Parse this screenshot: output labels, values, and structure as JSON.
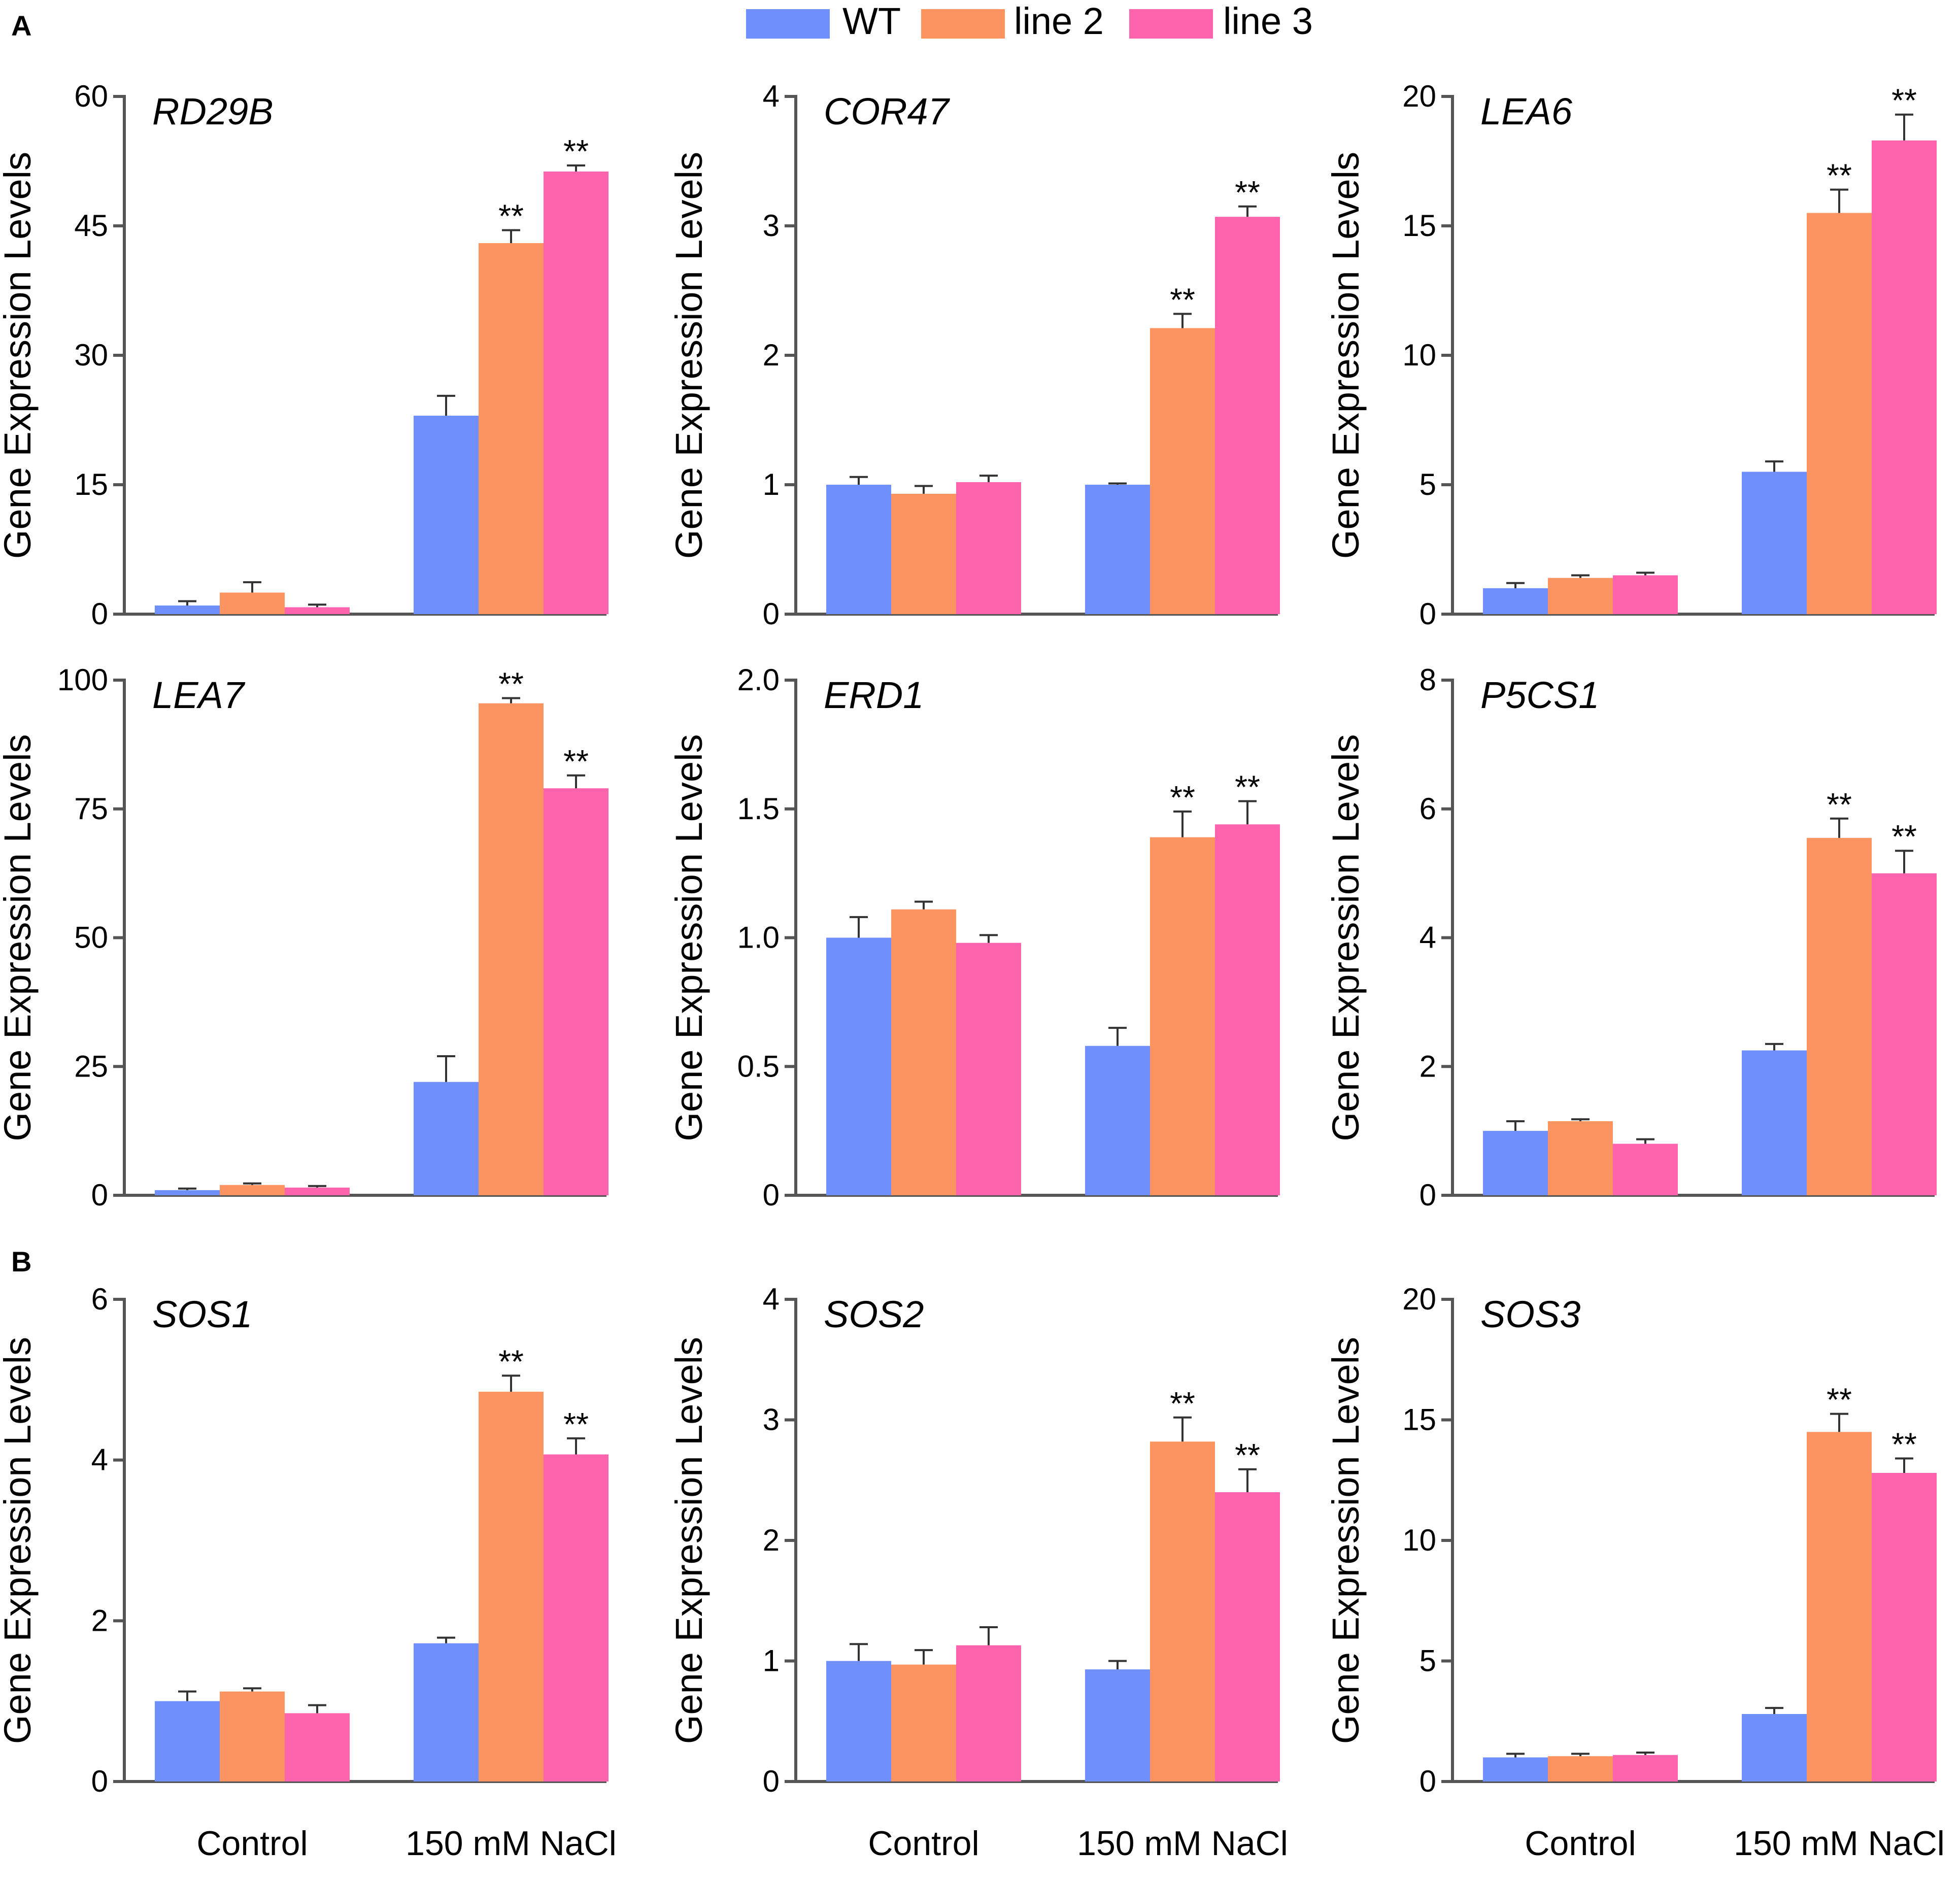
{
  "legend": [
    {
      "label": "WT",
      "color": "#6f8ffc"
    },
    {
      "label": "line 2",
      "color": "#fb9460"
    },
    {
      "label": "line 3",
      "color": "#fd64ad"
    }
  ],
  "panel_labels": [
    "A",
    "B"
  ],
  "chart_data": [
    {
      "type": "bar",
      "title": "RD29B",
      "ylabel": "Gene Expression Levels",
      "xlabel": "",
      "categories": [
        "Control",
        "150 mM NaCl"
      ],
      "ylim": [
        0,
        60
      ],
      "yticks": [
        "0",
        "15",
        "30",
        "45",
        "60"
      ],
      "show_xticks": false,
      "series": [
        {
          "name": "WT",
          "values": [
            1.0,
            23.0
          ],
          "errors": [
            0.5,
            2.3
          ],
          "sig": [
            "",
            ""
          ]
        },
        {
          "name": "line 2",
          "values": [
            2.5,
            43.0
          ],
          "errors": [
            1.2,
            1.5
          ],
          "sig": [
            "",
            "**"
          ]
        },
        {
          "name": "line 3",
          "values": [
            0.8,
            51.3
          ],
          "errors": [
            0.3,
            0.7
          ],
          "sig": [
            "",
            "**"
          ]
        }
      ]
    },
    {
      "type": "bar",
      "title": "COR47",
      "ylabel": "Gene Expression Levels",
      "xlabel": "",
      "categories": [
        "Control",
        "150 mM NaCl"
      ],
      "ylim": [
        0,
        4
      ],
      "yticks": [
        "0",
        "1",
        "2",
        "3",
        "4"
      ],
      "show_xticks": false,
      "series": [
        {
          "name": "WT",
          "values": [
            1.0,
            1.0
          ],
          "errors": [
            0.06,
            0.01
          ],
          "sig": [
            "",
            ""
          ]
        },
        {
          "name": "line 2",
          "values": [
            0.93,
            2.21
          ],
          "errors": [
            0.06,
            0.11
          ],
          "sig": [
            "",
            "**"
          ]
        },
        {
          "name": "line 3",
          "values": [
            1.02,
            3.07
          ],
          "errors": [
            0.05,
            0.08
          ],
          "sig": [
            "",
            "**"
          ]
        }
      ]
    },
    {
      "type": "bar",
      "title": "LEA6",
      "ylabel": "Gene Expression Levels",
      "xlabel": "",
      "categories": [
        "Control",
        "150 mM NaCl"
      ],
      "ylim": [
        0,
        20
      ],
      "yticks": [
        "0",
        "5",
        "10",
        "15",
        "20"
      ],
      "show_xticks": false,
      "series": [
        {
          "name": "WT",
          "values": [
            1.0,
            5.5
          ],
          "errors": [
            0.2,
            0.4
          ],
          "sig": [
            "",
            ""
          ]
        },
        {
          "name": "line 2",
          "values": [
            1.4,
            15.5
          ],
          "errors": [
            0.1,
            0.9
          ],
          "sig": [
            "",
            "**"
          ]
        },
        {
          "name": "line 3",
          "values": [
            1.5,
            18.3
          ],
          "errors": [
            0.1,
            1.0
          ],
          "sig": [
            "",
            "**"
          ]
        }
      ]
    },
    {
      "type": "bar",
      "title": "LEA7",
      "ylabel": "Gene Expression Levels",
      "xlabel": "",
      "categories": [
        "Control",
        "150 mM NaCl"
      ],
      "ylim": [
        0,
        100
      ],
      "yticks": [
        "0",
        "25",
        "50",
        "75",
        "100"
      ],
      "show_xticks": false,
      "series": [
        {
          "name": "WT",
          "values": [
            1.0,
            22.0
          ],
          "errors": [
            0.3,
            5.0
          ],
          "sig": [
            "",
            ""
          ]
        },
        {
          "name": "line 2",
          "values": [
            2.0,
            95.5
          ],
          "errors": [
            0.3,
            1.0
          ],
          "sig": [
            "",
            "**"
          ]
        },
        {
          "name": "line 3",
          "values": [
            1.5,
            79.0
          ],
          "errors": [
            0.3,
            2.5
          ],
          "sig": [
            "",
            "**"
          ]
        }
      ]
    },
    {
      "type": "bar",
      "title": "ERD1",
      "ylabel": "Gene Expression Levels",
      "xlabel": "",
      "categories": [
        "Control",
        "150 mM NaCl"
      ],
      "ylim": [
        0,
        2
      ],
      "yticks": [
        "0",
        "0.5",
        "1.0",
        "1.5",
        "2.0"
      ],
      "show_xticks": false,
      "series": [
        {
          "name": "WT",
          "values": [
            1.0,
            0.58
          ],
          "errors": [
            0.08,
            0.07
          ],
          "sig": [
            "",
            ""
          ]
        },
        {
          "name": "line 2",
          "values": [
            1.11,
            1.39
          ],
          "errors": [
            0.03,
            0.1
          ],
          "sig": [
            "",
            "**"
          ]
        },
        {
          "name": "line 3",
          "values": [
            0.98,
            1.44
          ],
          "errors": [
            0.03,
            0.09
          ],
          "sig": [
            "",
            "**"
          ]
        }
      ]
    },
    {
      "type": "bar",
      "title": "P5CS1",
      "ylabel": "Gene Expression Levels",
      "xlabel": "",
      "categories": [
        "Control",
        "150 mM NaCl"
      ],
      "ylim": [
        0,
        8
      ],
      "yticks": [
        "0",
        "2",
        "4",
        "6",
        "8"
      ],
      "show_xticks": false,
      "series": [
        {
          "name": "WT",
          "values": [
            1.0,
            2.25
          ],
          "errors": [
            0.15,
            0.1
          ],
          "sig": [
            "",
            ""
          ]
        },
        {
          "name": "line 2",
          "values": [
            1.15,
            5.55
          ],
          "errors": [
            0.03,
            0.3
          ],
          "sig": [
            "",
            "**"
          ]
        },
        {
          "name": "line 3",
          "values": [
            0.8,
            5.0
          ],
          "errors": [
            0.07,
            0.35
          ],
          "sig": [
            "",
            "**"
          ]
        }
      ]
    },
    {
      "type": "bar",
      "title": "SOS1",
      "ylabel": "Gene Expression Levels",
      "xlabel": "",
      "categories": [
        "Control",
        "150 mM NaCl"
      ],
      "ylim": [
        0,
        6
      ],
      "yticks": [
        "0",
        "2",
        "4",
        "6"
      ],
      "show_xticks": true,
      "series": [
        {
          "name": "WT",
          "values": [
            1.0,
            1.72
          ],
          "errors": [
            0.12,
            0.07
          ],
          "sig": [
            "",
            ""
          ]
        },
        {
          "name": "line 2",
          "values": [
            1.12,
            4.85
          ],
          "errors": [
            0.04,
            0.2
          ],
          "sig": [
            "",
            "**"
          ]
        },
        {
          "name": "line 3",
          "values": [
            0.85,
            4.07
          ],
          "errors": [
            0.1,
            0.2
          ],
          "sig": [
            "",
            "**"
          ]
        }
      ]
    },
    {
      "type": "bar",
      "title": "SOS2",
      "ylabel": "Gene Expression Levels",
      "xlabel": "",
      "categories": [
        "Control",
        "150 mM NaCl"
      ],
      "ylim": [
        0,
        4
      ],
      "yticks": [
        "0",
        "1",
        "2",
        "3",
        "4"
      ],
      "show_xticks": true,
      "series": [
        {
          "name": "WT",
          "values": [
            1.0,
            0.93
          ],
          "errors": [
            0.14,
            0.07
          ],
          "sig": [
            "",
            ""
          ]
        },
        {
          "name": "line 2",
          "values": [
            0.97,
            2.82
          ],
          "errors": [
            0.12,
            0.2
          ],
          "sig": [
            "",
            "**"
          ]
        },
        {
          "name": "line 3",
          "values": [
            1.13,
            2.4
          ],
          "errors": [
            0.15,
            0.19
          ],
          "sig": [
            "",
            "**"
          ]
        }
      ]
    },
    {
      "type": "bar",
      "title": "SOS3",
      "ylabel": "Gene Expression Levels",
      "xlabel": "",
      "categories": [
        "Control",
        "150 mM NaCl"
      ],
      "ylim": [
        0,
        20
      ],
      "yticks": [
        "0",
        "5",
        "10",
        "15",
        "20"
      ],
      "show_xticks": true,
      "series": [
        {
          "name": "WT",
          "values": [
            1.0,
            2.8
          ],
          "errors": [
            0.15,
            0.25
          ],
          "sig": [
            "",
            ""
          ]
        },
        {
          "name": "line 2",
          "values": [
            1.05,
            14.5
          ],
          "errors": [
            0.1,
            0.75
          ],
          "sig": [
            "",
            "**"
          ]
        },
        {
          "name": "line 3",
          "values": [
            1.1,
            12.8
          ],
          "errors": [
            0.1,
            0.6
          ],
          "sig": [
            "",
            "**"
          ]
        }
      ]
    }
  ]
}
